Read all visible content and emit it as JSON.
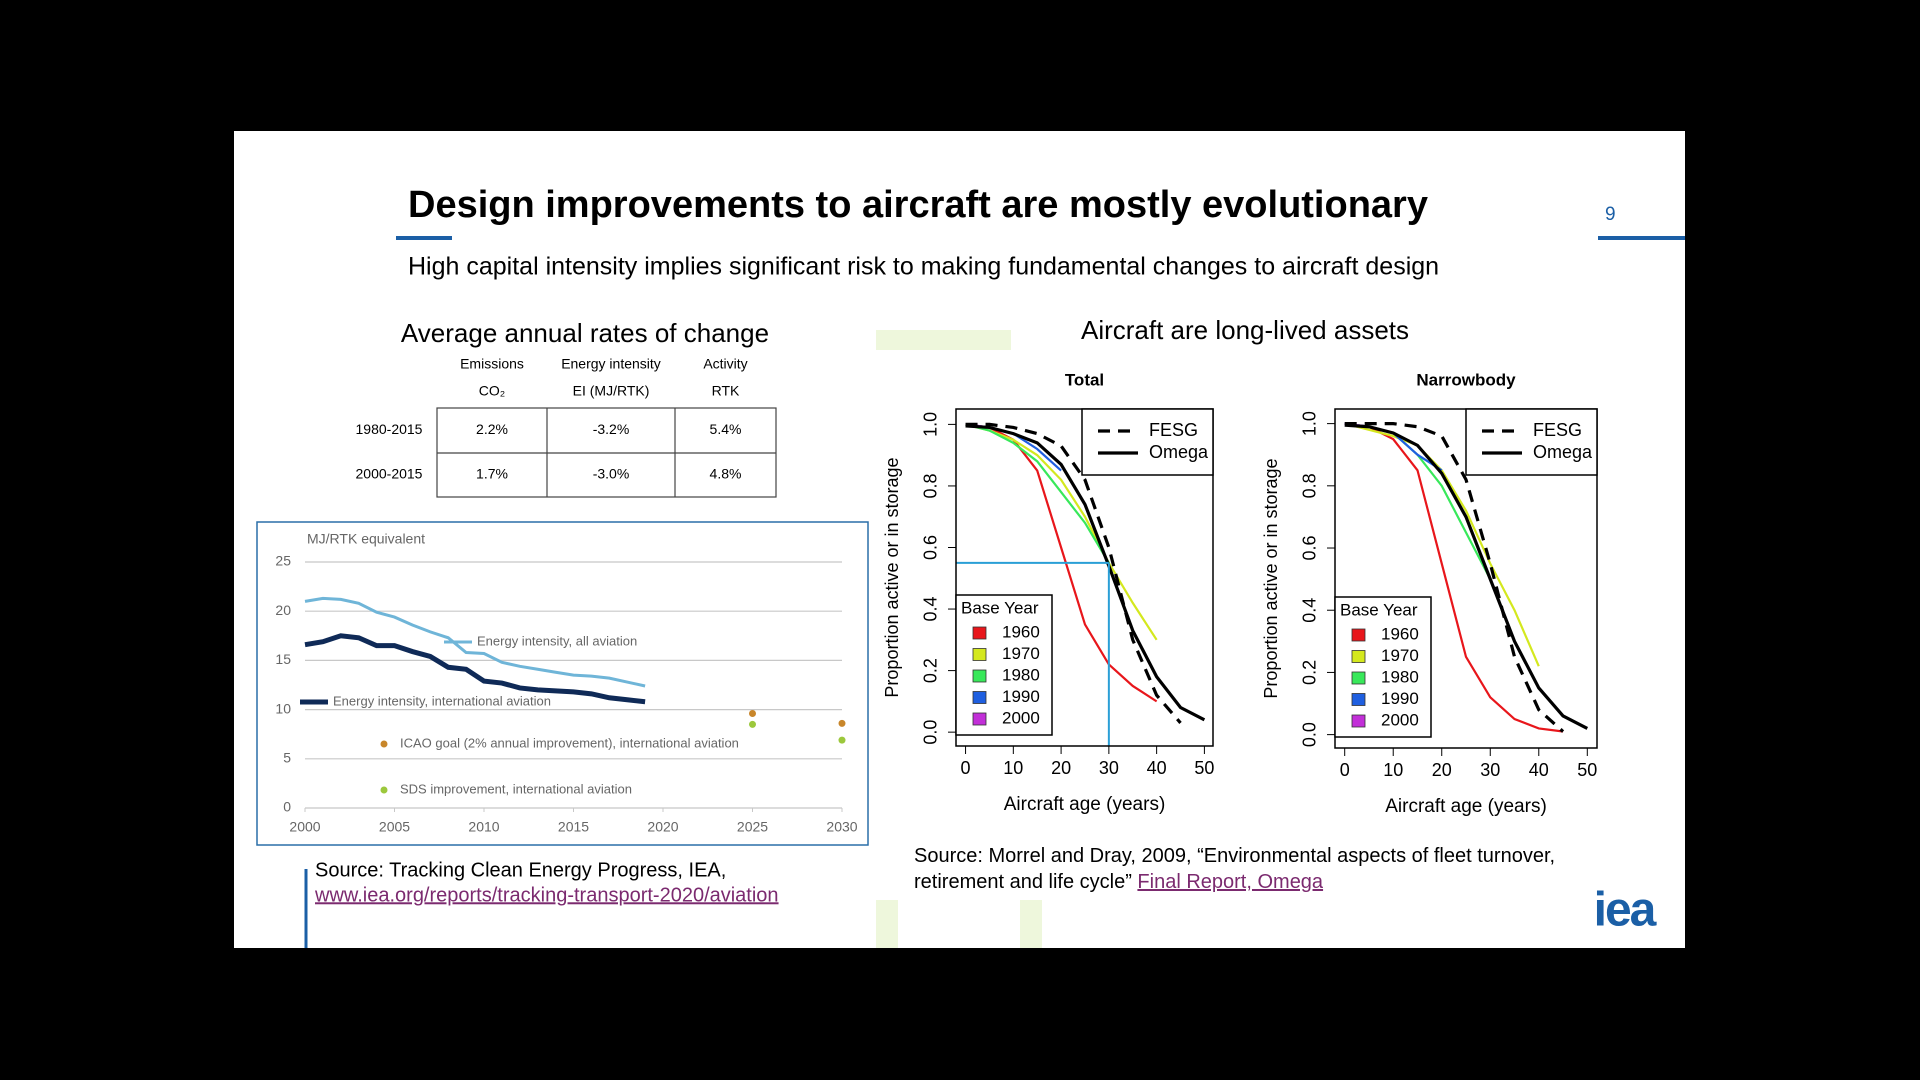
{
  "header": {
    "title": "Design improvements to aircraft are mostly evolutionary",
    "page_number": "9",
    "subtitle": "High capital intensity implies significant risk to making fundamental changes to aircraft design"
  },
  "table": {
    "title": "Average annual rates of change",
    "columns": [
      [
        "Emissions",
        "CO₂"
      ],
      [
        "Energy intensity",
        "EI (MJ/RTK)"
      ],
      [
        "Activity",
        "RTK"
      ]
    ],
    "rows": [
      [
        "1980-2015",
        "2.2%",
        "-3.2%",
        "5.4%"
      ],
      [
        "2000-2015",
        "1.7%",
        "-3.0%",
        "4.8%"
      ]
    ]
  },
  "intensity_chart": {
    "type": "line",
    "y_label": "MJ/RTK equivalent",
    "x": [
      2000,
      2001,
      2002,
      2003,
      2004,
      2005,
      2006,
      2007,
      2008,
      2009,
      2010,
      2011,
      2012,
      2013,
      2014,
      2015,
      2016,
      2017,
      2018,
      2019
    ],
    "xlim": [
      2000,
      2030
    ],
    "xticks": [
      2000,
      2005,
      2010,
      2015,
      2020,
      2025,
      2030
    ],
    "ylim": [
      0,
      25
    ],
    "yticks": [
      0,
      5,
      10,
      15,
      20,
      25
    ],
    "grid": true,
    "series": [
      {
        "name": "Energy intensity, all aviation",
        "color": "#6fb5d8",
        "values": [
          21,
          21.3,
          21.2,
          20.8,
          19.9,
          19.4,
          18.6,
          17.9,
          17.3,
          15.8,
          15.7,
          14.8,
          14.4,
          14.1,
          13.8,
          13.5,
          13.4,
          13.2,
          12.8,
          12.4
        ]
      },
      {
        "name": "Energy intensity, international aviation",
        "color": "#0f2a57",
        "values": [
          16.6,
          16.9,
          17.5,
          17.3,
          16.5,
          16.5,
          15.9,
          15.4,
          14.3,
          14.1,
          12.9,
          12.7,
          12.2,
          12.0,
          11.9,
          11.8,
          11.6,
          11.2,
          11.0,
          10.8
        ]
      }
    ],
    "goals": [
      {
        "name": "ICAO goal (2% annual improvement), international aviation",
        "color": "#c8862a",
        "x": [
          2025,
          2030
        ],
        "values": [
          9.6,
          8.6
        ]
      },
      {
        "name": "SDS improvement, international aviation",
        "color": "#9cc83c",
        "x": [
          2025,
          2030
        ],
        "values": [
          8.5,
          6.9
        ]
      }
    ]
  },
  "source_left": {
    "text": "Source: Tracking Clean Energy Progress, IEA,",
    "link": "www.iea.org/reports/tracking-transport-2020/aviation"
  },
  "survival": {
    "title": "Aircraft are long-lived assets",
    "x_label": "Aircraft age (years)",
    "y_label": "Proportion active or in storage",
    "legend_title": "Base Year",
    "legend_corner": "top-right",
    "base_legend_corner": "bottom-left",
    "panels": [
      {
        "type": "line",
        "title": "Total",
        "x": [
          0,
          5,
          10,
          15,
          20,
          25,
          30,
          35,
          40,
          45,
          50
        ],
        "xlim": [
          -2,
          51.8
        ],
        "ylim": [
          -0.045,
          1.05
        ],
        "xticks": [
          0,
          10,
          20,
          30,
          40,
          50
        ],
        "yticks": [
          {
            "value": 0,
            "label": "0.0"
          },
          {
            "value": 0.2,
            "label": "0.2"
          },
          {
            "value": 0.4,
            "label": "0.4"
          },
          {
            "value": 0.6,
            "label": "0.6"
          },
          {
            "value": 0.8,
            "label": "0.8"
          },
          {
            "value": 1,
            "label": "1.0"
          }
        ],
        "models": [
          {
            "name": "FESG",
            "color": "#000000",
            "dashed": true,
            "values": [
              1,
              1,
              0.99,
              0.97,
              0.93,
              0.82,
              0.6,
              0.3,
              0.12,
              0.03,
              null
            ]
          },
          {
            "name": "Omega",
            "color": "#000000",
            "dashed": false,
            "values": [
              0.995,
              0.99,
              0.97,
              0.94,
              0.87,
              0.74,
              0.54,
              0.33,
              0.18,
              0.08,
              0.04
            ]
          }
        ],
        "series": [
          {
            "name": "1960",
            "color": "#e8161b",
            "values": [
              1,
              0.99,
              0.95,
              0.85,
              0.6,
              0.35,
              0.22,
              0.15,
              0.1,
              null,
              null
            ]
          },
          {
            "name": "1970",
            "color": "#d4e81e",
            "values": [
              1,
              0.98,
              0.95,
              0.9,
              0.82,
              0.7,
              0.55,
              0.42,
              0.3,
              null,
              null
            ]
          },
          {
            "name": "1980",
            "color": "#38e85a",
            "values": [
              1,
              0.98,
              0.94,
              0.88,
              0.78,
              0.68,
              0.55,
              null,
              null,
              null,
              null
            ]
          },
          {
            "name": "1990",
            "color": "#1f5fe0",
            "values": [
              1,
              0.99,
              0.97,
              0.92,
              0.85,
              null,
              null,
              null,
              null,
              null,
              null
            ]
          },
          {
            "name": "2000",
            "color": "#c22fd8",
            "values": [
              1,
              0.99,
              null,
              null,
              null,
              null,
              null,
              null,
              null,
              null,
              null
            ]
          }
        ],
        "reference": {
          "color": "#2a9fd6",
          "x": 30,
          "y": 0.55
        }
      },
      {
        "type": "line",
        "title": "Narrowbody",
        "x": [
          0,
          5,
          10,
          15,
          20,
          25,
          30,
          35,
          40,
          45,
          50
        ],
        "xlim": [
          -2,
          52
        ],
        "ylim": [
          -0.043,
          1.047
        ],
        "xticks": [
          0,
          10,
          20,
          30,
          40,
          50
        ],
        "yticks": [
          {
            "value": 0,
            "label": "0.0"
          },
          {
            "value": 0.2,
            "label": "0.2"
          },
          {
            "value": 0.4,
            "label": "0.4"
          },
          {
            "value": 0.6,
            "label": "0.6"
          },
          {
            "value": 0.8,
            "label": "0.8"
          },
          {
            "value": 1,
            "label": "1.0"
          }
        ],
        "models": [
          {
            "name": "FESG",
            "color": "#000000",
            "dashed": true,
            "values": [
              1,
              1,
              1,
              0.99,
              0.96,
              0.82,
              0.55,
              0.25,
              0.08,
              0.01,
              null
            ]
          },
          {
            "name": "Omega",
            "color": "#000000",
            "dashed": false,
            "values": [
              0.995,
              0.99,
              0.97,
              0.93,
              0.84,
              0.7,
              0.5,
              0.3,
              0.15,
              0.06,
              0.02
            ]
          }
        ],
        "series": [
          {
            "name": "1960",
            "color": "#e8161b",
            "values": [
              1,
              0.99,
              0.95,
              0.85,
              0.55,
              0.25,
              0.12,
              0.05,
              0.02,
              0.01,
              null
            ]
          },
          {
            "name": "1970",
            "color": "#d4e81e",
            "values": [
              1,
              0.98,
              0.96,
              0.93,
              0.85,
              0.72,
              0.55,
              0.4,
              0.22,
              null,
              null
            ]
          },
          {
            "name": "1980",
            "color": "#38e85a",
            "values": [
              1,
              0.99,
              0.97,
              0.9,
              0.8,
              0.65,
              0.5,
              null,
              null,
              null,
              null
            ]
          },
          {
            "name": "1990",
            "color": "#1f5fe0",
            "values": [
              1,
              0.99,
              0.97,
              0.9,
              0.85,
              null,
              null,
              null,
              null,
              null,
              null
            ]
          },
          {
            "name": "2000",
            "color": "#c22fd8",
            "values": [
              1,
              0.99,
              null,
              null,
              null,
              null,
              null,
              null,
              null,
              null,
              null
            ]
          }
        ]
      }
    ]
  },
  "source_right": {
    "lines": [
      "Source: Morrel and Dray, 2009, “Environmental aspects of fleet turnover,",
      "retirement and life cycle” "
    ],
    "link": "Final Report, Omega"
  },
  "logo": "iea"
}
